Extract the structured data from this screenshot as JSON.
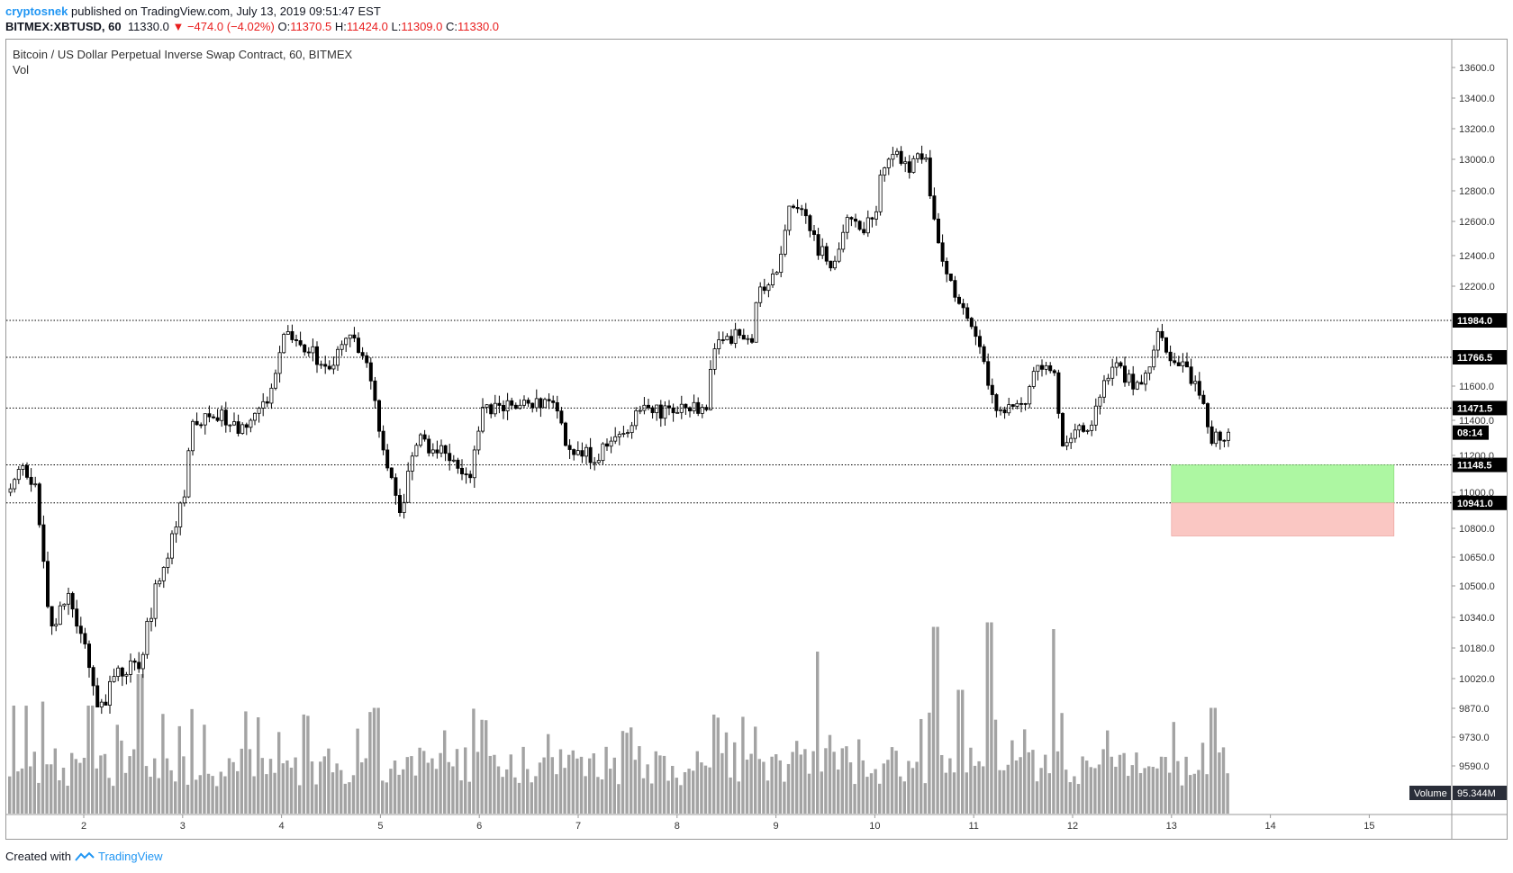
{
  "header": {
    "author": "cryptosnek",
    "published": "published on TradingView.com, July 13, 2019 09:51:47 EST",
    "symbol": "BITMEX:XBTUSD, 60",
    "last": "11330.0",
    "change": "−474.0 (−4.02%)",
    "o_label": "O:",
    "o": "11370.5",
    "h_label": "H:",
    "h": "11424.0",
    "l_label": "L:",
    "l": "11309.0",
    "c_label": "C:",
    "c": "11330.0"
  },
  "chart_title": "Bitcoin / US Dollar Perpetual Inverse Swap Contract, 60, BITMEX",
  "volume_label": "Vol",
  "footer": {
    "created": "Created with",
    "brand": "TradingView"
  },
  "colors": {
    "candle_up": "#ffffff",
    "candle_down": "#000000",
    "wick": "#000000",
    "volume": "#a3a3a3",
    "target_zone": "#adf7a2",
    "stop_zone": "#fac7c3",
    "price_label_bg": "#000000",
    "brand": "#2196f3"
  },
  "chart_data": {
    "type": "candlestick",
    "x_tick_labels": [
      "2",
      "3",
      "4",
      "5",
      "6",
      "7",
      "8",
      "9",
      "10",
      "11",
      "12",
      "13",
      "14",
      "15"
    ],
    "y_tick_labels": [
      "13600.0",
      "13400.0",
      "13200.0",
      "13000.0",
      "12800.0",
      "12600.0",
      "12400.0",
      "12200.0",
      "11600.0",
      "11400.0",
      "11200.0",
      "11000.0",
      "10800.0",
      "10650.0",
      "10500.0",
      "10340.0",
      "10180.0",
      "10020.0",
      "9870.0",
      "9730.0",
      "9590.0"
    ],
    "horizontal_levels": [
      "11984.0",
      "11766.5",
      "11471.5",
      "11148.5",
      "10941.0"
    ],
    "current_price_label": "08:14",
    "volume_axis_label": "Volume",
    "volume_axis_value": "95.344M",
    "zones": [
      {
        "name": "target",
        "from": 10941.0,
        "to": 11148.5,
        "day_start": 13.0,
        "day_end": 15.25
      },
      {
        "name": "stop",
        "from": 10760.0,
        "to": 10941.0,
        "day_start": 13.0,
        "day_end": 15.25
      }
    ],
    "price_keypoints": [
      [
        1.2,
        11000
      ],
      [
        1.35,
        11120
      ],
      [
        1.5,
        11000
      ],
      [
        1.65,
        10250
      ],
      [
        1.8,
        10450
      ],
      [
        1.95,
        10300
      ],
      [
        2.15,
        9850
      ],
      [
        2.3,
        10050
      ],
      [
        2.55,
        10100
      ],
      [
        2.7,
        10450
      ],
      [
        2.85,
        10700
      ],
      [
        3.0,
        11000
      ],
      [
        3.1,
        11400
      ],
      [
        3.3,
        11450
      ],
      [
        3.6,
        11350
      ],
      [
        3.85,
        11500
      ],
      [
        4.0,
        11900
      ],
      [
        4.2,
        11850
      ],
      [
        4.45,
        11700
      ],
      [
        4.65,
        11900
      ],
      [
        4.85,
        11750
      ],
      [
        4.95,
        11450
      ],
      [
        5.05,
        11150
      ],
      [
        5.2,
        10900
      ],
      [
        5.35,
        11300
      ],
      [
        5.5,
        11250
      ],
      [
        5.7,
        11200
      ],
      [
        5.9,
        11050
      ],
      [
        6.0,
        11450
      ],
      [
        6.3,
        11500
      ],
      [
        6.5,
        11500
      ],
      [
        6.75,
        11500
      ],
      [
        6.9,
        11200
      ],
      [
        7.15,
        11200
      ],
      [
        7.4,
        11300
      ],
      [
        7.6,
        11450
      ],
      [
        7.8,
        11450
      ],
      [
        8.0,
        11450
      ],
      [
        8.3,
        11500
      ],
      [
        8.35,
        11850
      ],
      [
        8.5,
        11900
      ],
      [
        8.75,
        11850
      ],
      [
        8.8,
        12150
      ],
      [
        9.0,
        12300
      ],
      [
        9.1,
        12650
      ],
      [
        9.25,
        12700
      ],
      [
        9.4,
        12450
      ],
      [
        9.55,
        12350
      ],
      [
        9.75,
        12650
      ],
      [
        9.85,
        12550
      ],
      [
        10.0,
        12650
      ],
      [
        10.05,
        12900
      ],
      [
        10.2,
        13050
      ],
      [
        10.35,
        12950
      ],
      [
        10.5,
        13050
      ],
      [
        10.6,
        12500
      ],
      [
        10.75,
        12200
      ],
      [
        10.95,
        11950
      ],
      [
        11.1,
        11700
      ],
      [
        11.2,
        11450
      ],
      [
        11.35,
        11500
      ],
      [
        11.5,
        11500
      ],
      [
        11.65,
        11750
      ],
      [
        11.8,
        11650
      ],
      [
        11.9,
        11200
      ],
      [
        12.0,
        11350
      ],
      [
        12.15,
        11300
      ],
      [
        12.3,
        11650
      ],
      [
        12.45,
        11700
      ],
      [
        12.6,
        11600
      ],
      [
        12.75,
        11650
      ],
      [
        12.85,
        11900
      ],
      [
        13.0,
        11750
      ],
      [
        13.2,
        11650
      ],
      [
        13.3,
        11500
      ],
      [
        13.4,
        11300
      ],
      [
        13.55,
        11330
      ]
    ],
    "volume_spikes": [
      {
        "day": 1.28,
        "rel": 0.48
      },
      {
        "day": 2.05,
        "rel": 0.48
      },
      {
        "day": 2.55,
        "rel": 0.62
      },
      {
        "day": 4.95,
        "rel": 0.47
      },
      {
        "day": 8.35,
        "rel": 0.44
      },
      {
        "day": 9.4,
        "rel": 0.72
      },
      {
        "day": 10.6,
        "rel": 0.83
      },
      {
        "day": 10.85,
        "rel": 0.55
      },
      {
        "day": 11.15,
        "rel": 0.85
      },
      {
        "day": 11.8,
        "rel": 0.82
      },
      {
        "day": 13.4,
        "rel": 0.47
      }
    ]
  }
}
